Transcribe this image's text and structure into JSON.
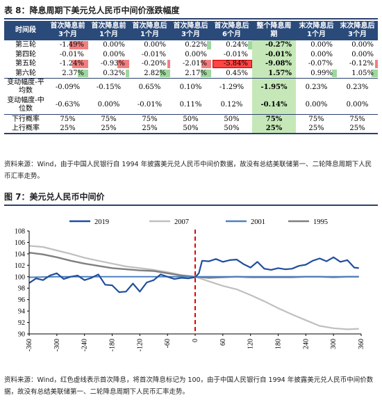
{
  "table_section": {
    "caption": "表 8：降息周期下美元兑人民币中间价涨跌幅度",
    "headers": [
      "时间段",
      "首次降息前3个月",
      "首次降息前1个月",
      "首次降息后1个月",
      "首次降息后3个月",
      "首次降息后6个月",
      "整个降息周期",
      "末次降息后1个月",
      "末次降息后3个月"
    ],
    "rows": [
      {
        "label": "第三轮",
        "values": [
          "-1.49%",
          "0.00%",
          "0.00%",
          "0.22%",
          "0.24%",
          "-0.27%",
          "0.00%",
          "0.00%"
        ]
      },
      {
        "label": "第四轮",
        "values": [
          "-0.01%",
          "0.00%",
          "-0.01%",
          "0.00%",
          "-0.01%",
          "-0.01%",
          "0.00%",
          "0.00%"
        ]
      },
      {
        "label": "第五轮",
        "values": [
          "-1.24%",
          "-0.93%",
          "-0.20%",
          "-2.01%",
          "-5.84%",
          "-9.08%",
          "-0.07%",
          "-0.12%"
        ]
      },
      {
        "label": "第六轮",
        "values": [
          "2.37%",
          "0.32%",
          "2.82%",
          "2.17%",
          "0.45%",
          "1.57%",
          "0.99%",
          "1.05%"
        ]
      }
    ],
    "avg_row": {
      "label": "变动幅度-平均数",
      "values": [
        "-0.09%",
        "-0.15%",
        "0.65%",
        "0.10%",
        "-1.29%",
        "-1.95%",
        "0.23%",
        "0.23%"
      ]
    },
    "median_row": {
      "label": "变动幅度-中位数",
      "values": [
        "-0.63%",
        "0.00%",
        "-0.01%",
        "0.11%",
        "0.12%",
        "-0.14%",
        "0.00%",
        "0.00%"
      ]
    },
    "down_row": {
      "label": "下行概率",
      "values": [
        "75%",
        "75%",
        "75%",
        "50%",
        "50%",
        "75%",
        "75%",
        "75%"
      ]
    },
    "up_row": {
      "label": "上行概率",
      "values": [
        "25%",
        "25%",
        "25%",
        "50%",
        "50%",
        "25%",
        "25%",
        "25%"
      ]
    },
    "source_note": "资料来源：Wind，由于中国人民银行自 1994 年披露美元兑人民币中间价数据，故没有总结美联储第一、二轮降息周期下人民币汇率走势。"
  },
  "chart_section": {
    "caption": "图 7：美元兑人民币中间价",
    "source_note": "资料来源：Wind，红色虚线表示首次降息，将首次降息标记为 100，由于中国人民银行自 1994 年披露美元兑人民币中间价数据，故没有总结美联储第一、二轮降息周期下人民币汇率走势。"
  },
  "chart_data": {
    "type": "line",
    "xlim": [
      -360,
      360
    ],
    "ylim": [
      90,
      108
    ],
    "x_ticks": [
      -360,
      -300,
      -240,
      -180,
      -120,
      -60,
      0,
      60,
      120,
      180,
      240,
      300,
      360
    ],
    "y_ticks": [
      90,
      92,
      94,
      96,
      98,
      100,
      102,
      104,
      106,
      108
    ],
    "first_cut_x": 0,
    "legend_position": "top",
    "series": [
      {
        "name": "2019",
        "color": "#1f4e9c",
        "points": [
          [
            -360,
            98.9
          ],
          [
            -345,
            99.7
          ],
          [
            -330,
            99.4
          ],
          [
            -315,
            100.2
          ],
          [
            -300,
            100.6
          ],
          [
            -285,
            99.6
          ],
          [
            -270,
            100.0
          ],
          [
            -255,
            100.2
          ],
          [
            -240,
            99.4
          ],
          [
            -225,
            99.8
          ],
          [
            -210,
            100.4
          ],
          [
            -195,
            98.6
          ],
          [
            -180,
            98.5
          ],
          [
            -165,
            97.3
          ],
          [
            -150,
            97.4
          ],
          [
            -135,
            98.8
          ],
          [
            -120,
            97.4
          ],
          [
            -105,
            99.0
          ],
          [
            -90,
            99.4
          ],
          [
            -75,
            100.4
          ],
          [
            -60,
            100.0
          ],
          [
            -45,
            99.6
          ],
          [
            -30,
            99.8
          ],
          [
            -15,
            99.7
          ],
          [
            0,
            99.9
          ],
          [
            8,
            100.6
          ],
          [
            15,
            102.8
          ],
          [
            30,
            102.7
          ],
          [
            45,
            103.1
          ],
          [
            60,
            102.6
          ],
          [
            75,
            102.9
          ],
          [
            90,
            103.0
          ],
          [
            105,
            102.2
          ],
          [
            120,
            101.6
          ],
          [
            135,
            102.6
          ],
          [
            150,
            101.4
          ],
          [
            165,
            101.2
          ],
          [
            180,
            101.5
          ],
          [
            195,
            101.3
          ],
          [
            210,
            101.4
          ],
          [
            225,
            101.9
          ],
          [
            240,
            102.1
          ],
          [
            255,
            102.8
          ],
          [
            270,
            103.2
          ],
          [
            285,
            102.7
          ],
          [
            300,
            103.4
          ],
          [
            315,
            102.6
          ],
          [
            330,
            102.9
          ],
          [
            345,
            101.6
          ],
          [
            355,
            101.5
          ]
        ]
      },
      {
        "name": "2007",
        "color": "#bfbfbf",
        "points": [
          [
            -360,
            105.4
          ],
          [
            -330,
            105.2
          ],
          [
            -300,
            104.6
          ],
          [
            -270,
            104.0
          ],
          [
            -240,
            103.3
          ],
          [
            -210,
            102.8
          ],
          [
            -180,
            102.3
          ],
          [
            -150,
            101.8
          ],
          [
            -120,
            101.5
          ],
          [
            -90,
            101.2
          ],
          [
            -60,
            100.8
          ],
          [
            -30,
            100.3
          ],
          [
            0,
            100.0
          ],
          [
            30,
            99.2
          ],
          [
            60,
            98.4
          ],
          [
            90,
            97.8
          ],
          [
            120,
            96.8
          ],
          [
            150,
            95.7
          ],
          [
            180,
            94.5
          ],
          [
            210,
            93.4
          ],
          [
            240,
            92.4
          ],
          [
            270,
            91.4
          ],
          [
            300,
            91.0
          ],
          [
            330,
            90.8
          ],
          [
            355,
            90.9
          ]
        ]
      },
      {
        "name": "2001",
        "color": "#4f81bd",
        "points": [
          [
            -360,
            99.9
          ],
          [
            -300,
            100.0
          ],
          [
            -240,
            100.0
          ],
          [
            -180,
            100.0
          ],
          [
            -120,
            100.0
          ],
          [
            -60,
            100.0
          ],
          [
            0,
            100.0
          ],
          [
            60,
            100.0
          ],
          [
            120,
            100.0
          ],
          [
            180,
            100.0
          ],
          [
            240,
            100.0
          ],
          [
            300,
            100.0
          ],
          [
            355,
            100.0
          ]
        ]
      },
      {
        "name": "1995",
        "color": "#7f7f7f",
        "points": [
          [
            -360,
            104.2
          ],
          [
            -330,
            103.9
          ],
          [
            -300,
            103.4
          ],
          [
            -270,
            102.8
          ],
          [
            -240,
            102.3
          ],
          [
            -210,
            101.9
          ],
          [
            -180,
            101.5
          ],
          [
            -150,
            101.3
          ],
          [
            -120,
            101.1
          ],
          [
            -90,
            101.0
          ],
          [
            -60,
            100.6
          ],
          [
            -30,
            100.2
          ],
          [
            0,
            100.0
          ],
          [
            30,
            99.8
          ],
          [
            60,
            99.9
          ],
          [
            90,
            100.0
          ],
          [
            120,
            99.9
          ],
          [
            150,
            99.9
          ],
          [
            180,
            99.9
          ],
          [
            210,
            99.9
          ],
          [
            240,
            100.0
          ],
          [
            270,
            100.0
          ],
          [
            300,
            99.9
          ],
          [
            330,
            100.0
          ],
          [
            355,
            100.0
          ]
        ]
      }
    ]
  }
}
